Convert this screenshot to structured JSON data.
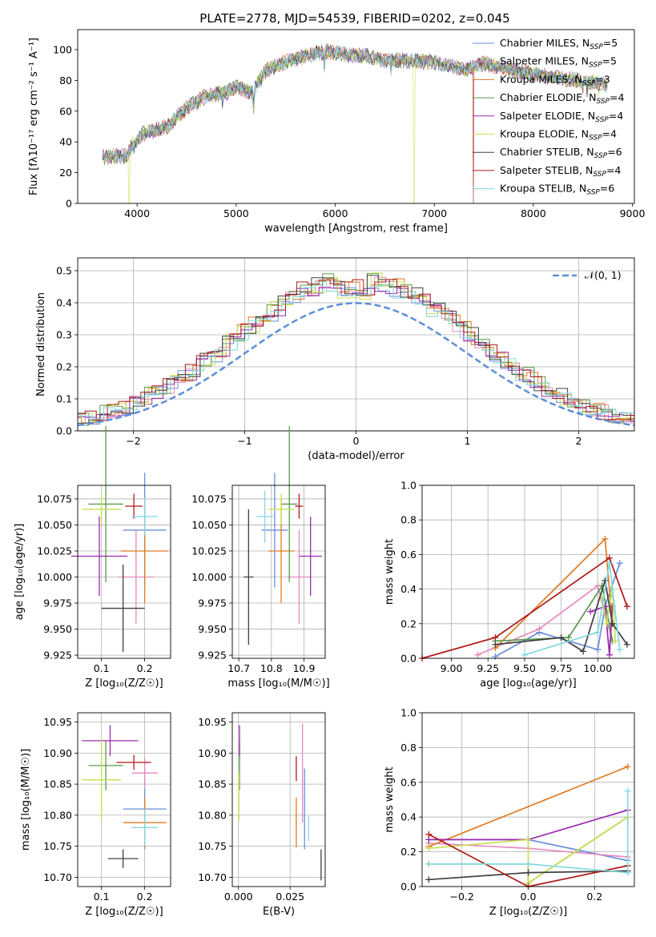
{
  "title": "PLATE=2778, MJD=54539, FIBERID=0202, z=0.045",
  "colors": {
    "chabrier_miles": "#6a8fd8",
    "salpeter_miles": "#e58ac0",
    "kroupa_miles": "#e07a20",
    "chabrier_elodie": "#5a9a4a",
    "salpeter_elodie": "#9a2ab0",
    "kroupa_elodie": "#c8e050",
    "chabrier_stelib": "#404040",
    "salpeter_stelib": "#b01818",
    "kroupa_stelib": "#80d8e0",
    "gauss": "#5b8fd6",
    "grid": "#b0b0b0"
  },
  "legend_series": [
    {
      "name": "Chabrier MILES",
      "nssp": "5",
      "color": "#6a8fd8"
    },
    {
      "name": "Salpeter MILES",
      "nssp": "5",
      "color": "#e58ac0"
    },
    {
      "name": "Kroupa MILES",
      "nssp": "3",
      "color": "#e07a20"
    },
    {
      "name": "Chabrier ELODIE",
      "nssp": "4",
      "color": "#5a9a4a"
    },
    {
      "name": "Salpeter ELODIE",
      "nssp": "4",
      "color": "#9a2ab0"
    },
    {
      "name": "Kroupa ELODIE",
      "nssp": "4",
      "color": "#c8e050"
    },
    {
      "name": "Chabrier STELIB",
      "nssp": "6",
      "color": "#404040"
    },
    {
      "name": "Salpeter STELIB",
      "nssp": "4",
      "color": "#b01818"
    },
    {
      "name": "Kroupa STELIB",
      "nssp": "6",
      "color": "#80d8e0"
    }
  ],
  "chart_data": [
    {
      "id": "spectrum",
      "type": "line",
      "xlabel": "wavelength [Angstrom, rest frame]",
      "ylabel": "Flux [fλ10⁻¹⁷ erg cm⁻² s⁻¹ A⁻¹]",
      "xlim": [
        3400,
        9020
      ],
      "ylim": [
        0,
        113
      ],
      "xticks": [
        4000,
        5000,
        6000,
        7000,
        8000,
        9000
      ],
      "yticks": [
        0,
        20,
        40,
        60,
        80,
        100
      ],
      "grid": false,
      "legend": "top-right",
      "continuum": [
        [
          3650,
          30
        ],
        [
          3900,
          31
        ],
        [
          3950,
          38
        ],
        [
          4050,
          45
        ],
        [
          4200,
          48
        ],
        [
          4300,
          50
        ],
        [
          4500,
          62
        ],
        [
          4700,
          70
        ],
        [
          4900,
          72
        ],
        [
          5000,
          76
        ],
        [
          5150,
          72
        ],
        [
          5300,
          86
        ],
        [
          5500,
          92
        ],
        [
          5700,
          96
        ],
        [
          5900,
          99
        ],
        [
          6100,
          97
        ],
        [
          6300,
          96
        ],
        [
          6500,
          93
        ],
        [
          6700,
          93
        ],
        [
          7000,
          92
        ],
        [
          7300,
          87
        ],
        [
          7500,
          91
        ],
        [
          7700,
          88
        ],
        [
          8000,
          84
        ],
        [
          8300,
          81
        ],
        [
          8600,
          79
        ],
        [
          8750,
          77
        ]
      ],
      "absorption_lines": [
        [
          3933,
          32
        ],
        [
          3968,
          32
        ],
        [
          4101,
          42
        ],
        [
          4304,
          44
        ],
        [
          4340,
          46
        ],
        [
          4861,
          66
        ],
        [
          5175,
          60
        ],
        [
          5270,
          80
        ],
        [
          5890,
          88
        ],
        [
          6563,
          85
        ],
        [
          8498,
          73
        ],
        [
          8542,
          72
        ],
        [
          8662,
          73
        ]
      ]
    },
    {
      "id": "residuals",
      "type": "line",
      "xlabel": "(data-model)/error",
      "ylabel": "Normed distribution",
      "xlim": [
        -2.5,
        2.5
      ],
      "ylim": [
        0,
        0.54
      ],
      "xticks": [
        -2,
        -1,
        0,
        1,
        2
      ],
      "yticks": [
        0.0,
        0.1,
        0.2,
        0.3,
        0.4,
        0.5
      ],
      "grid": true,
      "legend": "top-right",
      "reference": {
        "name": "𝒩(0, 1)",
        "mean": 0,
        "sigma": 1
      }
    },
    {
      "id": "age-vs-Z",
      "type": "scatter",
      "xlabel": "Z [log₁₀(Z/Z☉)]",
      "ylabel": "age  [log₁₀(age/yr)]",
      "xlim": [
        0.045,
        0.26
      ],
      "ylim": [
        9.922,
        10.088
      ],
      "xticks": [
        0.1,
        0.2
      ],
      "yticks": [
        9.925,
        9.95,
        9.975,
        10.0,
        10.025,
        10.05,
        10.075
      ],
      "grid": true,
      "points": [
        {
          "x": 0.2,
          "y": 10.045,
          "xerr": 0.05,
          "yerr": 0.055
        },
        {
          "x": 0.18,
          "y": 10.0,
          "xerr": 0.04,
          "yerr": 0.045
        },
        {
          "x": 0.2,
          "y": 10.025,
          "xerr": 0.055,
          "yerr": 0.05
        },
        {
          "x": 0.11,
          "y": 10.07,
          "xerr": 0.04,
          "yerr": 0.075
        },
        {
          "x": 0.095,
          "y": 10.02,
          "xerr": 0.065,
          "yerr": 0.038
        },
        {
          "x": 0.1,
          "y": 10.065,
          "xerr": 0.045,
          "yerr": 0.015
        },
        {
          "x": 0.15,
          "y": 9.97,
          "xerr": 0.05,
          "yerr": 0.042
        },
        {
          "x": 0.175,
          "y": 10.068,
          "xerr": 0.02,
          "yerr": 0.012
        },
        {
          "x": 0.2,
          "y": 10.058,
          "xerr": 0.03,
          "yerr": 0.018
        }
      ]
    },
    {
      "id": "age-vs-mass",
      "type": "scatter",
      "xlabel": "mass [log₁₀(M/M☉)]",
      "ylabel": "",
      "xlim": [
        10.68,
        10.965
      ],
      "ylim": [
        9.922,
        10.088
      ],
      "xticks": [
        10.7,
        10.8,
        10.9
      ],
      "yticks": [
        9.925,
        9.95,
        9.975,
        10.0,
        10.025,
        10.05,
        10.075
      ],
      "grid": true,
      "points": [
        {
          "x": 10.81,
          "y": 10.045,
          "xerr": 0.04,
          "yerr": 0.055
        },
        {
          "x": 10.885,
          "y": 10.0,
          "xerr": 0.035,
          "yerr": 0.045
        },
        {
          "x": 10.83,
          "y": 10.025,
          "xerr": 0.04,
          "yerr": 0.05
        },
        {
          "x": 10.855,
          "y": 10.07,
          "xerr": 0.025,
          "yerr": 0.075
        },
        {
          "x": 10.92,
          "y": 10.02,
          "xerr": 0.035,
          "yerr": 0.038
        },
        {
          "x": 10.83,
          "y": 10.065,
          "xerr": 0.04,
          "yerr": 0.015
        },
        {
          "x": 10.73,
          "y": 10.0,
          "xerr": 0.015,
          "yerr": 0.065
        },
        {
          "x": 10.885,
          "y": 10.068,
          "xerr": 0.012,
          "yerr": 0.012
        },
        {
          "x": 10.78,
          "y": 10.058,
          "xerr": 0.025,
          "yerr": 0.025
        }
      ]
    },
    {
      "id": "mass-weight-vs-age",
      "type": "line",
      "xlabel": "age  [log₁₀(age/yr)]",
      "ylabel": "mass weight",
      "xlim": [
        8.8,
        10.25
      ],
      "ylim": [
        0,
        1
      ],
      "xticks": [
        9.0,
        9.25,
        9.5,
        9.75,
        10.0
      ],
      "yticks": [
        0.0,
        0.2,
        0.4,
        0.6,
        0.8,
        1.0
      ],
      "grid": true,
      "series": [
        {
          "color": "#6a8fd8",
          "x": [
            9.3,
            9.6,
            10.0,
            10.05,
            10.15
          ],
          "y": [
            0.01,
            0.15,
            0.05,
            0.3,
            0.55
          ]
        },
        {
          "color": "#e58ac0",
          "x": [
            9.18,
            9.6,
            10.0,
            10.05,
            10.1
          ],
          "y": [
            0.02,
            0.17,
            0.42,
            0.25,
            0.1
          ]
        },
        {
          "color": "#e07a20",
          "x": [
            9.3,
            10.05,
            10.1
          ],
          "y": [
            0.06,
            0.69,
            0.2
          ]
        },
        {
          "color": "#5a9a4a",
          "x": [
            9.3,
            9.8,
            10.03,
            10.1
          ],
          "y": [
            0.1,
            0.12,
            0.42,
            0.1
          ]
        },
        {
          "color": "#9a2ab0",
          "x": [
            9.95,
            10.05,
            10.08,
            10.1
          ],
          "y": [
            0.27,
            0.3,
            0.02,
            0.3
          ]
        },
        {
          "color": "#c8e050",
          "x": [
            10.03,
            10.06,
            10.1,
            10.12
          ],
          "y": [
            0.35,
            0.2,
            0.4,
            0.1
          ]
        },
        {
          "color": "#404040",
          "x": [
            9.3,
            9.75,
            9.9,
            10.05,
            10.1,
            10.2
          ],
          "y": [
            0.08,
            0.12,
            0.04,
            0.45,
            0.2,
            0.08
          ]
        },
        {
          "color": "#b01818",
          "x": [
            8.8,
            9.3,
            10.08,
            10.2
          ],
          "y": [
            0.0,
            0.12,
            0.58,
            0.3
          ]
        },
        {
          "color": "#80d8e0",
          "x": [
            9.5,
            10.0,
            10.08,
            10.15
          ],
          "y": [
            0.02,
            0.15,
            0.55,
            0.05
          ]
        }
      ]
    },
    {
      "id": "mass-vs-Z",
      "type": "scatter",
      "xlabel": "Z [log₁₀(Z/Z☉)]",
      "ylabel": "mass [log₁₀(M/M☉)]",
      "xlim": [
        0.045,
        0.26
      ],
      "ylim": [
        10.685,
        10.965
      ],
      "xticks": [
        0.1,
        0.2
      ],
      "yticks": [
        10.7,
        10.75,
        10.8,
        10.85,
        10.9,
        10.95
      ],
      "grid": true,
      "points": [
        {
          "x": 0.2,
          "y": 10.81,
          "xerr": 0.05,
          "yerr": 0.065
        },
        {
          "x": 0.2,
          "y": 10.868,
          "xerr": 0.03,
          "yerr": 0.025
        },
        {
          "x": 0.2,
          "y": 10.788,
          "xerr": 0.05,
          "yerr": 0.04
        },
        {
          "x": 0.11,
          "y": 10.88,
          "xerr": 0.04,
          "yerr": 0.04
        },
        {
          "x": 0.12,
          "y": 10.92,
          "xerr": 0.065,
          "yerr": 0.025
        },
        {
          "x": 0.1,
          "y": 10.857,
          "xerr": 0.045,
          "yerr": 0.065
        },
        {
          "x": 0.15,
          "y": 10.73,
          "xerr": 0.035,
          "yerr": 0.015
        },
        {
          "x": 0.175,
          "y": 10.885,
          "xerr": 0.04,
          "yerr": 0.012
        },
        {
          "x": 0.2,
          "y": 10.78,
          "xerr": 0.03,
          "yerr": 0.03
        }
      ]
    },
    {
      "id": "mass-vs-ebv",
      "type": "scatter",
      "xlabel": "E(B-V)",
      "ylabel": "",
      "xlim": [
        -0.003,
        0.042
      ],
      "ylim": [
        10.685,
        10.965
      ],
      "xticks": [
        0.0,
        0.025
      ],
      "yticks": [
        10.7,
        10.75,
        10.8,
        10.85,
        10.9,
        10.95
      ],
      "grid": true,
      "points": [
        {
          "x": 0.032,
          "y": 10.81,
          "yerr": 0.065
        },
        {
          "x": 0.031,
          "y": 10.868,
          "yerr": 0.08
        },
        {
          "x": 0.028,
          "y": 10.788,
          "yerr": 0.04
        },
        {
          "x": 0.0005,
          "y": 10.88,
          "yerr": 0.04
        },
        {
          "x": 0.0005,
          "y": 10.92,
          "yerr": 0.025
        },
        {
          "x": 0.0002,
          "y": 10.83,
          "yerr": 0.04
        },
        {
          "x": 0.04,
          "y": 10.72,
          "yerr": 0.025
        },
        {
          "x": 0.028,
          "y": 10.875,
          "yerr": 0.02
        },
        {
          "x": 0.034,
          "y": 10.778,
          "yerr": 0.02
        }
      ]
    },
    {
      "id": "mass-weight-vs-Z",
      "type": "line",
      "xlabel": "Z [log₁₀(Z/Z☉)]",
      "ylabel": "mass weight",
      "xlim": [
        -0.32,
        0.32
      ],
      "ylim": [
        0,
        1
      ],
      "xticks": [
        -0.2,
        0.0,
        0.2
      ],
      "yticks": [
        0.0,
        0.2,
        0.4,
        0.6,
        0.8,
        1.0
      ],
      "grid": true,
      "series": [
        {
          "color": "#6a8fd8",
          "x": [
            -0.3,
            0.0,
            0.3
          ],
          "y": [
            0.27,
            0.27,
            0.15
          ]
        },
        {
          "color": "#e58ac0",
          "x": [
            -0.3,
            0.0,
            0.3
          ],
          "y": [
            0.25,
            0.22,
            0.17
          ]
        },
        {
          "color": "#e07a20",
          "x": [
            -0.3,
            0.3
          ],
          "y": [
            0.23,
            0.69
          ]
        },
        {
          "color": "#5a9a4a",
          "x": [
            -0.3,
            0.0,
            0.0,
            0.3
          ],
          "y": [
            0.13,
            0.13,
            0.02,
            0.4
          ]
        },
        {
          "color": "#9a2ab0",
          "x": [
            -0.3,
            0.0,
            0.3
          ],
          "y": [
            0.27,
            0.27,
            0.44
          ]
        },
        {
          "color": "#c8e050",
          "x": [
            -0.3,
            0.0,
            0.0,
            0.3
          ],
          "y": [
            0.22,
            0.27,
            0.02,
            0.4
          ]
        },
        {
          "color": "#404040",
          "x": [
            -0.3,
            0.0,
            0.3
          ],
          "y": [
            0.04,
            0.08,
            0.09
          ]
        },
        {
          "color": "#b01818",
          "x": [
            -0.3,
            0.0,
            0.3
          ],
          "y": [
            0.3,
            0.0,
            0.12
          ]
        },
        {
          "color": "#80d8e0",
          "x": [
            -0.3,
            0.0,
            0.3,
            0.3
          ],
          "y": [
            0.13,
            0.13,
            0.08,
            0.55
          ]
        }
      ]
    }
  ]
}
